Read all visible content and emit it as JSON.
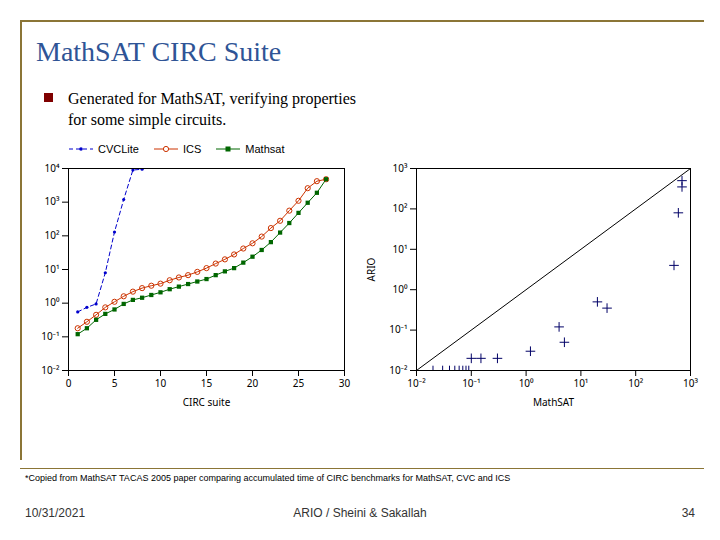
{
  "title": "MathSAT CIRC Suite",
  "annotations": [
    "Generated for MathSAT, verifying properties",
    "for some simple circuits.",
    "*Copied from MathSAT TACAS 2005 paper comparing accumulated time of CIRC benchmarks for MathSAT, CVC and ICS",
    "10/31/2021",
    "ARIO / Sheini & Sakallah",
    "34"
  ],
  "chart_data": [
    {
      "type": "line",
      "log": "y",
      "xlabel": "CIRC suite",
      "xlim": [
        0,
        30
      ],
      "xticks": [
        0,
        5,
        10,
        15,
        20,
        25,
        30
      ],
      "ylim": [
        0.01,
        10000
      ],
      "yticks": [
        {
          "value": 0.01,
          "label": "10⁻²"
        },
        {
          "value": 0.1,
          "label": "10⁻¹"
        },
        {
          "value": 1,
          "label": "10⁰"
        },
        {
          "value": 10,
          "label": "10¹"
        },
        {
          "value": 100,
          "label": "10²"
        },
        {
          "value": 1000,
          "label": "10³"
        },
        {
          "value": 10000,
          "label": "10⁴"
        }
      ],
      "legend": "upper left",
      "series": [
        {
          "name": "CVCLite",
          "color": "#0000CC",
          "line_style": "dashed",
          "marker": "point",
          "x": [
            1,
            2,
            3,
            4,
            5,
            6,
            7,
            8
          ],
          "values": [
            0.55,
            0.75,
            0.95,
            8,
            130,
            1200,
            9000,
            9500
          ]
        },
        {
          "name": "ICS",
          "color": "#CC3300",
          "line_style": "solid",
          "marker": "circle",
          "x": [
            1,
            2,
            3,
            4,
            5,
            6,
            7,
            8,
            9,
            10,
            11,
            12,
            13,
            14,
            15,
            16,
            17,
            18,
            19,
            20,
            21,
            22,
            23,
            24,
            25,
            26,
            27,
            28
          ],
          "values": [
            0.18,
            0.28,
            0.45,
            0.75,
            1.1,
            1.6,
            2.2,
            2.8,
            3.3,
            3.8,
            4.8,
            5.8,
            6.8,
            8.5,
            11,
            15,
            20,
            28,
            42,
            60,
            95,
            170,
            280,
            560,
            1100,
            2600,
            4200,
            4800
          ]
        },
        {
          "name": "Mathsat",
          "color": "#006600",
          "line_style": "solid",
          "marker": "square",
          "x": [
            1,
            2,
            3,
            4,
            5,
            6,
            7,
            8,
            9,
            10,
            11,
            12,
            13,
            14,
            15,
            16,
            17,
            18,
            19,
            20,
            21,
            22,
            23,
            24,
            25,
            26,
            27,
            28
          ],
          "values": [
            0.12,
            0.18,
            0.32,
            0.48,
            0.65,
            0.95,
            1.25,
            1.45,
            1.75,
            2.1,
            2.6,
            3.1,
            3.7,
            4.4,
            5.2,
            6.8,
            8.8,
            11,
            16,
            24,
            38,
            65,
            125,
            240,
            480,
            960,
            1900,
            4800
          ]
        }
      ]
    },
    {
      "type": "scatter",
      "log": true,
      "xlabel": "MathSAT",
      "ylabel": "ARIO",
      "xlim": [
        0.01,
        1000
      ],
      "xticks": [
        {
          "value": 0.01,
          "label": "10⁻²"
        },
        {
          "value": 0.1,
          "label": "10⁻¹"
        },
        {
          "value": 1,
          "label": "10⁰"
        },
        {
          "value": 10,
          "label": "10¹"
        },
        {
          "value": 100,
          "label": "10²"
        },
        {
          "value": 1000,
          "label": "10³"
        }
      ],
      "ylim": [
        0.01,
        1000
      ],
      "yticks": [
        {
          "value": 0.01,
          "label": "10⁻²"
        },
        {
          "value": 0.1,
          "label": "10⁻¹"
        },
        {
          "value": 1,
          "label": "10⁰"
        },
        {
          "value": 10,
          "label": "10¹"
        },
        {
          "value": 100,
          "label": "10²"
        },
        {
          "value": 1000,
          "label": "10³"
        }
      ],
      "series": [
        {
          "type": "scatter",
          "color": "#000066",
          "marker": "plus",
          "x": [
            0.02,
            0.03,
            0.04,
            0.05,
            0.06,
            0.07,
            0.08,
            0.09,
            0.1,
            0.15,
            0.3,
            1.2,
            4,
            5,
            20,
            30,
            500,
            600,
            700,
            700
          ],
          "values": [
            0.01,
            0.01,
            0.01,
            0.01,
            0.01,
            0.01,
            0.01,
            0.01,
            0.02,
            0.02,
            0.02,
            0.03,
            0.12,
            0.05,
            0.5,
            0.35,
            4,
            80,
            350,
            500
          ]
        },
        {
          "type": "line",
          "color": "#000000",
          "line_style": "solid",
          "x": [
            0.01,
            1000
          ],
          "values": [
            0.01,
            1000
          ]
        }
      ]
    }
  ]
}
